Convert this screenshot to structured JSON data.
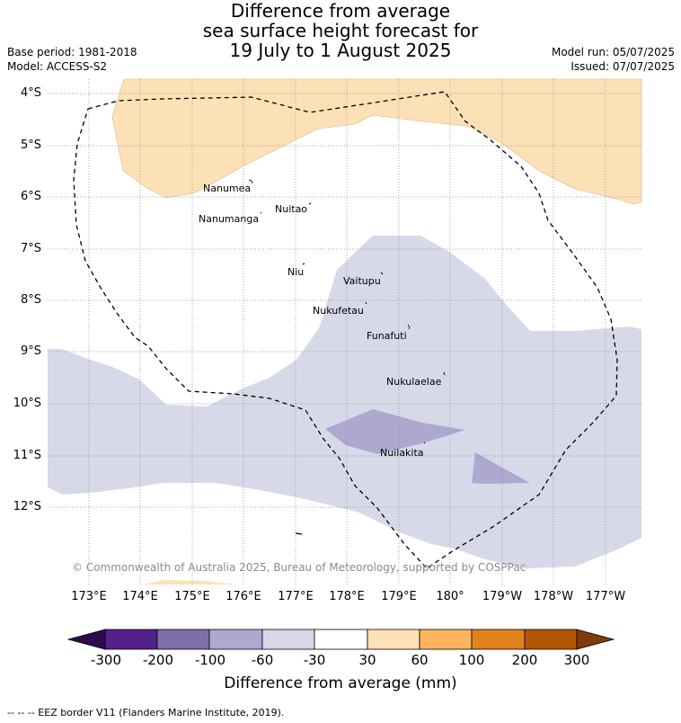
{
  "title": {
    "line1": "Difference from average",
    "line2": "sea surface height forecast for",
    "line3": "19 July to 1 August 2025"
  },
  "meta": {
    "base_period": "Base period: 1981-2018",
    "model": "Model: ACCESS-S2",
    "model_run": "Model run: 05/07/2025",
    "issued": "Issued: 07/07/2025"
  },
  "map": {
    "lat_labels": [
      "4°S",
      "5°S",
      "6°S",
      "7°S",
      "8°S",
      "9°S",
      "10°S",
      "11°S",
      "12°S"
    ],
    "lon_labels": [
      "173°E",
      "174°E",
      "175°E",
      "176°E",
      "177°E",
      "178°E",
      "179°E",
      "180°",
      "179°W",
      "178°W",
      "177°W"
    ],
    "places": [
      "Nanumea",
      "Nuitao",
      "Nanumanga",
      "Niu",
      "Vaitupu",
      "Nukufetau",
      "Funafuti",
      "Nukulaelae",
      "Nuilakita"
    ],
    "copyright": "© Commonwealth of Australia 2025, Bureau of Meteorology, supported by COSPPac"
  },
  "colorbar": {
    "labels": [
      "-300",
      "-200",
      "-100",
      "-60",
      "-30",
      "30",
      "60",
      "100",
      "200",
      "300"
    ],
    "colors": [
      "#2d0a4e",
      "#54208a",
      "#7e6eaa",
      "#ada8d0",
      "#d7d8e8",
      "#ffffff",
      "#fde1b6",
      "#fdb45e",
      "#e2821c",
      "#b35706",
      "#7f3b08"
    ],
    "title": "Difference from average (mm)"
  },
  "footer": {
    "eez_note": "--  --  -- EEZ border V11 (Flanders Marine Institute, 2019)."
  }
}
